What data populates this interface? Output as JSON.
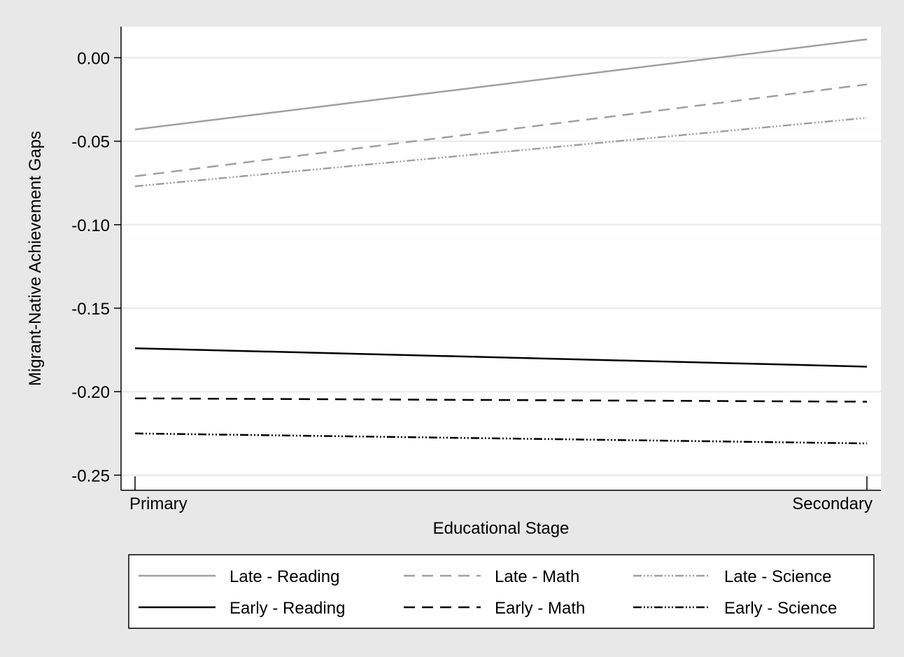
{
  "chart_data": {
    "type": "line",
    "xlabel": "Educational Stage",
    "ylabel": "Migrant-Native Achievement Gaps",
    "categories": [
      "Primary",
      "Secondary"
    ],
    "ylim": [
      -0.25,
      0.02
    ],
    "yticks": [
      0.0,
      -0.05,
      -0.1,
      -0.15,
      -0.2,
      -0.25
    ],
    "ytick_labels": [
      "0.00",
      "-0.05",
      "-0.10",
      "-0.15",
      "-0.20",
      "-0.25"
    ],
    "grid": true,
    "legend_position": "bottom",
    "series": [
      {
        "name": "Late - Reading",
        "values": [
          -0.043,
          0.011
        ],
        "color": "#a0a0a0",
        "dash": "solid"
      },
      {
        "name": "Late - Math",
        "values": [
          -0.071,
          -0.016
        ],
        "color": "#a0a0a0",
        "dash": "dash"
      },
      {
        "name": "Late - Science",
        "values": [
          -0.077,
          -0.036
        ],
        "color": "#a0a0a0",
        "dash": "dashdot3"
      },
      {
        "name": "Early - Reading",
        "values": [
          -0.174,
          -0.185
        ],
        "color": "#000000",
        "dash": "solid"
      },
      {
        "name": "Early - Math",
        "values": [
          -0.204,
          -0.206
        ],
        "color": "#000000",
        "dash": "dash"
      },
      {
        "name": "Early - Science",
        "values": [
          -0.225,
          -0.231
        ],
        "color": "#000000",
        "dash": "dashdot3"
      }
    ]
  }
}
